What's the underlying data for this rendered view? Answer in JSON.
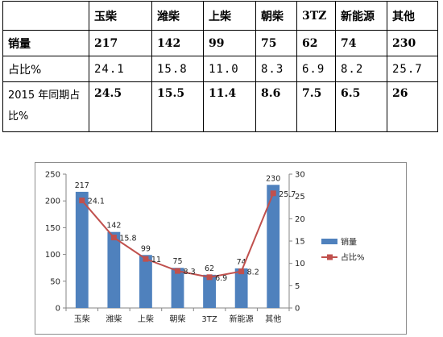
{
  "table": {
    "header": [
      "",
      "玉柴",
      "潍柴",
      "上柴",
      "朝柴",
      "3TZ",
      "新能源",
      "其他"
    ],
    "rows": [
      {
        "label": "销量",
        "cells": [
          "217",
          "142",
          "99",
          "75",
          "62",
          "74",
          "230"
        ]
      },
      {
        "label": "占比%",
        "cells": [
          "24.1",
          "15.8",
          "11.0",
          "8.3",
          "6.9",
          "8.2",
          "25.7"
        ]
      },
      {
        "label": "2015 年同期占比%",
        "cells": [
          "24.5",
          "15.5",
          "11.4",
          "8.6",
          "7.5",
          "6.5",
          "26"
        ]
      }
    ]
  },
  "chart_data": {
    "type": "bar",
    "categories": [
      "玉柴",
      "潍柴",
      "上柴",
      "朝柴",
      "3TZ",
      "新能源",
      "其他"
    ],
    "series": [
      {
        "name": "销量",
        "type": "bar",
        "axis": "left",
        "values": [
          217,
          142,
          99,
          75,
          62,
          74,
          230
        ],
        "labels": [
          "217",
          "142",
          "99",
          "75",
          "62",
          "74",
          "230"
        ]
      },
      {
        "name": "占比%",
        "type": "line",
        "axis": "right",
        "values": [
          24.1,
          15.8,
          11.0,
          8.3,
          6.9,
          8.2,
          25.7
        ],
        "labels": [
          "24.1",
          "15.8",
          "11",
          "8.3",
          "6.9",
          "8.2",
          "25.7"
        ]
      }
    ],
    "ylim_left": [
      0,
      250
    ],
    "yticks_left": [
      "0",
      "50",
      "100",
      "150",
      "200",
      "250"
    ],
    "ylim_right": [
      0,
      30
    ],
    "yticks_right": [
      "0",
      "5",
      "10",
      "15",
      "20",
      "25",
      "30"
    ],
    "legend": "right",
    "grid": false,
    "colors": {
      "bar": "#4f81bd",
      "line": "#c0504d"
    }
  }
}
